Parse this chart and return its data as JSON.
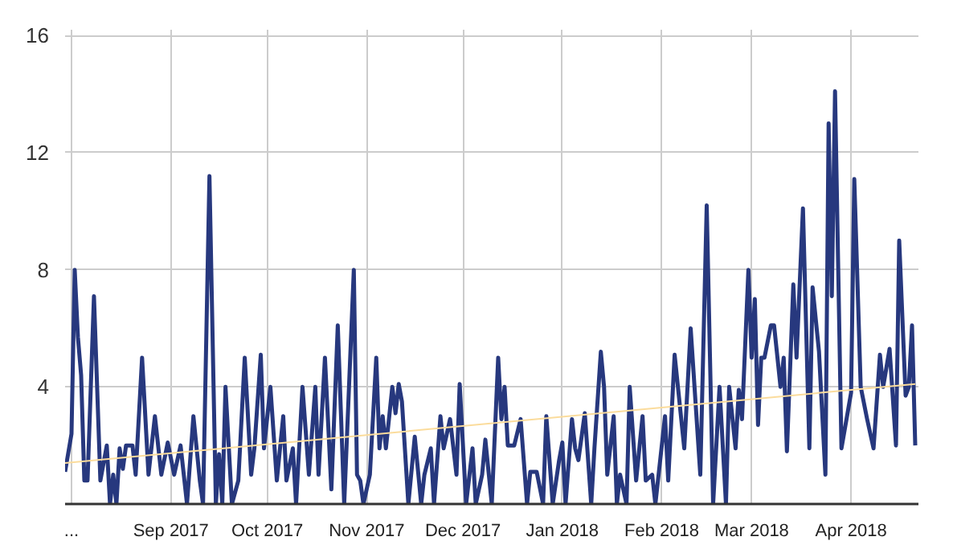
{
  "chart_data": {
    "type": "line",
    "xlim": [
      "2017-07-30",
      "2018-04-22"
    ],
    "xticks": [
      {
        "value": "2017-08-01",
        "label": "..."
      },
      {
        "value": "2017-09-01",
        "label": "Sep 2017"
      },
      {
        "value": "2017-10-01",
        "label": "Oct 2017"
      },
      {
        "value": "2017-11-01",
        "label": "Nov 2017"
      },
      {
        "value": "2017-12-01",
        "label": "Dec 2017"
      },
      {
        "value": "2018-01-01",
        "label": "Jan 2018"
      },
      {
        "value": "2018-02-01",
        "label": "Feb 2018"
      },
      {
        "value": "2018-03-01",
        "label": "Mar 2018"
      },
      {
        "value": "2018-04-01",
        "label": "Apr 2018"
      }
    ],
    "ylim": [
      0,
      16.2
    ],
    "yticks": [
      {
        "value": 0,
        "label": null
      },
      4,
      8,
      12,
      16
    ],
    "grid": true,
    "series": [
      {
        "color": "#27387e",
        "x": [
          "2017-07-30",
          "2017-08-01",
          "2017-08-02",
          "2017-08-03",
          "2017-08-04",
          "2017-08-05",
          "2017-08-06",
          "2017-08-08",
          "2017-08-10",
          "2017-08-12",
          "2017-08-13",
          "2017-08-14",
          "2017-08-15",
          "2017-08-16",
          "2017-08-17",
          "2017-08-18",
          "2017-08-20",
          "2017-08-21",
          "2017-08-23",
          "2017-08-25",
          "2017-08-27",
          "2017-08-29",
          "2017-08-31",
          "2017-09-02",
          "2017-09-04",
          "2017-09-06",
          "2017-09-08",
          "2017-09-10",
          "2017-09-11",
          "2017-09-13",
          "2017-09-15",
          "2017-09-16",
          "2017-09-17",
          "2017-09-18",
          "2017-09-20",
          "2017-09-22",
          "2017-09-24",
          "2017-09-26",
          "2017-09-27",
          "2017-09-29",
          "2017-09-30",
          "2017-10-02",
          "2017-10-04",
          "2017-10-06",
          "2017-10-07",
          "2017-10-09",
          "2017-10-10",
          "2017-10-12",
          "2017-10-14",
          "2017-10-16",
          "2017-10-17",
          "2017-10-19",
          "2017-10-21",
          "2017-10-23",
          "2017-10-25",
          "2017-10-28",
          "2017-10-29",
          "2017-10-30",
          "2017-10-31",
          "2017-11-02",
          "2017-11-04",
          "2017-11-05",
          "2017-11-06",
          "2017-11-07",
          "2017-11-09",
          "2017-11-10",
          "2017-11-11",
          "2017-11-12",
          "2017-11-14",
          "2017-11-16",
          "2017-11-18",
          "2017-11-19",
          "2017-11-21",
          "2017-11-22",
          "2017-11-24",
          "2017-11-25",
          "2017-11-27",
          "2017-11-29",
          "2017-11-30",
          "2017-12-02",
          "2017-12-04",
          "2017-12-05",
          "2017-12-07",
          "2017-12-08",
          "2017-12-10",
          "2017-12-12",
          "2017-12-13",
          "2017-12-14",
          "2017-12-15",
          "2017-12-17",
          "2017-12-19",
          "2017-12-21",
          "2017-12-22",
          "2017-12-24",
          "2017-12-26",
          "2017-12-27",
          "2017-12-29",
          "2017-12-31",
          "2018-01-01",
          "2018-01-02",
          "2018-01-04",
          "2018-01-05",
          "2018-01-06",
          "2018-01-08",
          "2018-01-10",
          "2018-01-11",
          "2018-01-13",
          "2018-01-14",
          "2018-01-15",
          "2018-01-17",
          "2018-01-18",
          "2018-01-19",
          "2018-01-21",
          "2018-01-22",
          "2018-01-24",
          "2018-01-26",
          "2018-01-27",
          "2018-01-29",
          "2018-01-30",
          "2018-02-02",
          "2018-02-03",
          "2018-02-05",
          "2018-02-08",
          "2018-02-10",
          "2018-02-13",
          "2018-02-15",
          "2018-02-17",
          "2018-02-19",
          "2018-02-21",
          "2018-02-22",
          "2018-02-24",
          "2018-02-25",
          "2018-02-26",
          "2018-02-28",
          "2018-03-01",
          "2018-03-02",
          "2018-03-03",
          "2018-03-04",
          "2018-03-05",
          "2018-03-07",
          "2018-03-08",
          "2018-03-10",
          "2018-03-11",
          "2018-03-12",
          "2018-03-14",
          "2018-03-15",
          "2018-03-17",
          "2018-03-19",
          "2018-03-20",
          "2018-03-22",
          "2018-03-24",
          "2018-03-25",
          "2018-03-26",
          "2018-03-27",
          "2018-03-29",
          "2018-04-01",
          "2018-04-02",
          "2018-04-04",
          "2018-04-06",
          "2018-04-08",
          "2018-04-10",
          "2018-04-11",
          "2018-04-13",
          "2018-04-15",
          "2018-04-16",
          "2018-04-18",
          "2018-04-19",
          "2018-04-20",
          "2018-04-21"
        ],
        "values": [
          1.1,
          2.4,
          8.0,
          5.7,
          4.4,
          0.8,
          0.8,
          7.1,
          0.8,
          2.0,
          0,
          1.0,
          0,
          1.9,
          1.2,
          2.0,
          2.0,
          1.0,
          5.0,
          1.0,
          3.0,
          1.0,
          2.1,
          1.0,
          2.0,
          0,
          3.0,
          0.8,
          0,
          11.2,
          0,
          1.7,
          0,
          4.0,
          0,
          0.8,
          5.0,
          1.0,
          1.9,
          5.1,
          1.9,
          4.0,
          0.8,
          3.0,
          0.8,
          1.9,
          0,
          4.0,
          1.0,
          4.0,
          1.0,
          5.0,
          0.5,
          6.1,
          0,
          8.0,
          1.0,
          0.8,
          0,
          1.0,
          5.0,
          1.9,
          3.0,
          1.9,
          4.0,
          3.1,
          4.1,
          3.5,
          0,
          2.3,
          0,
          1.0,
          1.9,
          0,
          3.0,
          1.9,
          2.9,
          1.0,
          4.1,
          0,
          1.9,
          0,
          1.0,
          2.2,
          0,
          5.0,
          2.9,
          4.0,
          2.0,
          2.0,
          2.9,
          0,
          1.1,
          1.1,
          0,
          3.0,
          0,
          1.5,
          2.1,
          0,
          2.9,
          1.9,
          1.5,
          3.1,
          0,
          1.9,
          5.2,
          4.0,
          1.0,
          3.0,
          0,
          1.0,
          0,
          4.0,
          0.8,
          3.0,
          0.8,
          1.0,
          0,
          3.0,
          0.8,
          5.1,
          1.9,
          6.0,
          1.0,
          10.2,
          0,
          4.0,
          0,
          4.0,
          1.9,
          3.9,
          2.9,
          8.0,
          5.0,
          7.0,
          2.7,
          5.0,
          5.0,
          6.1,
          6.1,
          4.0,
          5.0,
          1.8,
          7.5,
          5.0,
          10.1,
          1.9,
          7.4,
          5.2,
          1.0,
          13.0,
          7.1,
          14.1,
          1.9,
          3.8,
          11.1,
          4.0,
          2.9,
          1.9,
          5.1,
          4.0,
          5.3,
          2.0,
          9.0,
          3.7,
          4.0,
          6.1,
          2.0
        ]
      },
      {
        "type": "line",
        "color": "#fbdc9c",
        "x": [
          "2017-07-30",
          "2018-04-21"
        ],
        "values": [
          1.4,
          4.1
        ]
      }
    ]
  }
}
